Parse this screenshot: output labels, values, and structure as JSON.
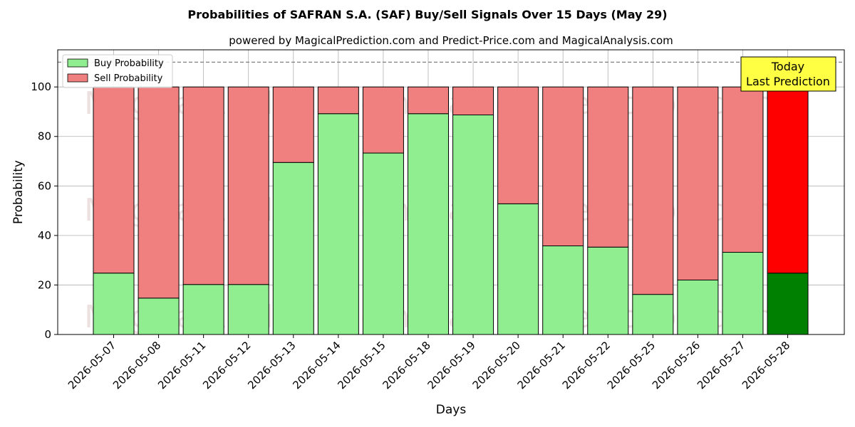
{
  "chart_data": {
    "type": "bar",
    "stacked": true,
    "title": "Probabilities of SAFRAN S.A. (SAF) Buy/Sell Signals Over 15 Days (May 29)",
    "subtitle": "powered by MagicalPrediction.com and Predict-Price.com and MagicalAnalysis.com",
    "xlabel": "Days",
    "ylabel": "Probability",
    "ylim": [
      0,
      115
    ],
    "yticks": [
      0,
      20,
      40,
      60,
      80,
      100
    ],
    "reference_line": 110,
    "grid": true,
    "legend_position": "top-left",
    "categories": [
      "2026-05-07",
      "2026-05-08",
      "2026-05-11",
      "2026-05-12",
      "2026-05-13",
      "2026-05-14",
      "2026-05-15",
      "2026-05-18",
      "2026-05-19",
      "2026-05-20",
      "2026-05-21",
      "2026-05-22",
      "2026-05-25",
      "2026-05-26",
      "2026-05-27",
      "2026-05-28"
    ],
    "series": [
      {
        "name": "Buy Probability",
        "color": "#90ee90",
        "highlight_color": "#008000",
        "values": [
          24.8,
          14.7,
          20.2,
          20.2,
          69.5,
          89.2,
          73.3,
          89.2,
          88.7,
          52.8,
          35.8,
          35.3,
          16.2,
          22.0,
          33.2,
          24.8
        ]
      },
      {
        "name": "Sell Probability",
        "color": "#f08080",
        "highlight_color": "#ff0000",
        "values": [
          75.2,
          85.3,
          79.8,
          79.8,
          30.5,
          10.8,
          26.7,
          10.8,
          11.3,
          47.2,
          64.2,
          64.7,
          83.8,
          78.0,
          66.8,
          75.2
        ]
      }
    ],
    "annotation": {
      "line1": "Today",
      "line2": "Last Prediction",
      "color": "#ffff44"
    },
    "watermarks": [
      "MagicalAnalysis.com",
      "MagicalPrediction.com"
    ]
  }
}
